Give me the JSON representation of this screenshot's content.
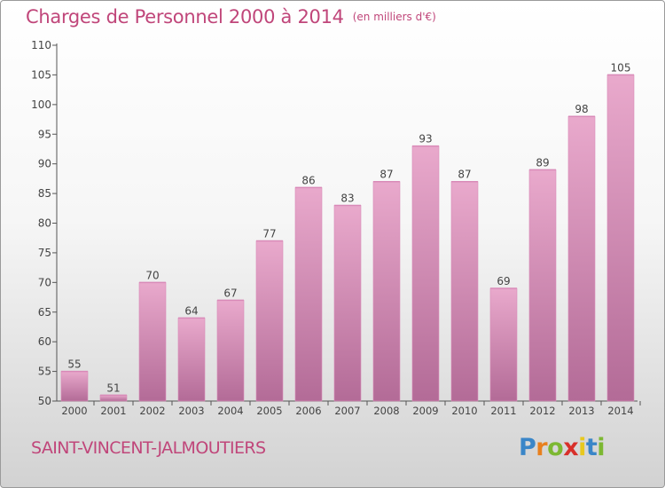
{
  "header": {
    "title": "Charges de Personnel 2000 à 2014",
    "subtitle": "(en milliers d'€)"
  },
  "footer": {
    "location": "SAINT-VINCENT-JALMOUTIERS",
    "logo_text": "Proxiti"
  },
  "colors": {
    "title": "#c0467a",
    "bar_light": "#e9a9cc",
    "bar_dark": "#b36b97",
    "bar_top": "#d98ab8",
    "axis": "#555555"
  },
  "logo_letters": [
    {
      "char": "P",
      "color": "#3a86c8"
    },
    {
      "char": "r",
      "color": "#e8801e"
    },
    {
      "char": "o",
      "color": "#7cb832"
    },
    {
      "char": "x",
      "color": "#d8302a"
    },
    {
      "char": "i",
      "color": "#e8c81e"
    },
    {
      "char": "t",
      "color": "#3a86c8"
    },
    {
      "char": "i",
      "color": "#7cb832"
    }
  ],
  "chart_data": {
    "type": "bar",
    "title": "Charges de Personnel 2000 à 2014",
    "subtitle": "(en milliers d'€)",
    "categories": [
      "2000",
      "2001",
      "2002",
      "2003",
      "2004",
      "2005",
      "2006",
      "2007",
      "2008",
      "2009",
      "2010",
      "2011",
      "2012",
      "2013",
      "2014"
    ],
    "values": [
      55,
      51,
      70,
      64,
      67,
      77,
      86,
      83,
      87,
      93,
      87,
      69,
      89,
      98,
      105
    ],
    "ylim": [
      50,
      110
    ],
    "yticks": [
      50,
      55,
      60,
      65,
      70,
      75,
      80,
      85,
      90,
      95,
      100,
      105,
      110
    ],
    "grid": false,
    "data_labels": true
  }
}
